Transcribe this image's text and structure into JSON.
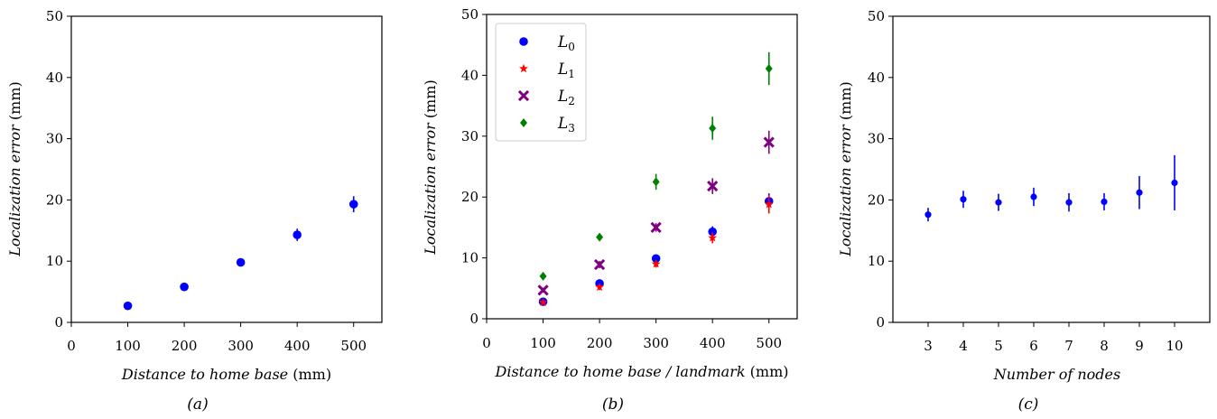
{
  "chart_data": [
    {
      "type": "scatter",
      "caption": "(a)",
      "xlabel_italic": "Distance to home base",
      "xlabel_unit": " (mm)",
      "ylabel_italic": "Localization error",
      "ylabel_unit": " (mm)",
      "xlim": [
        0,
        550
      ],
      "ylim": [
        0,
        50
      ],
      "xticks": [
        0,
        100,
        200,
        300,
        400,
        500
      ],
      "yticks": [
        0,
        10,
        20,
        30,
        40,
        50
      ],
      "series": [
        {
          "marker": "circle",
          "color": "#0000ff",
          "x": [
            100,
            200,
            300,
            400,
            500
          ],
          "y": [
            2.7,
            5.8,
            9.8,
            14.3,
            19.3
          ],
          "err": [
            0.4,
            0.5,
            0.5,
            1.0,
            1.3
          ]
        }
      ]
    },
    {
      "type": "scatter",
      "caption": "(b)",
      "xlabel_italic": "Distance to home base / landmark",
      "xlabel_unit": " (mm)",
      "ylabel_italic": "Localization error",
      "ylabel_unit": " (mm)",
      "xlim": [
        0,
        550
      ],
      "ylim": [
        0,
        50
      ],
      "xticks": [
        0,
        100,
        200,
        300,
        400,
        500
      ],
      "yticks": [
        0,
        10,
        20,
        30,
        40,
        50
      ],
      "legend": "top-left",
      "series": [
        {
          "name": "L",
          "sub": "0",
          "marker": "circle",
          "color": "#0000ff",
          "x": [
            100,
            200,
            300,
            400,
            500
          ],
          "y": [
            2.8,
            5.8,
            9.9,
            14.3,
            19.3
          ],
          "err": [
            0.4,
            0.5,
            0.6,
            0.9,
            1.3
          ]
        },
        {
          "name": "L",
          "sub": "1",
          "marker": "star",
          "color": "#ff0000",
          "x": [
            100,
            200,
            300,
            400,
            500
          ],
          "y": [
            2.7,
            5.2,
            9.0,
            13.3,
            18.8
          ],
          "err": [
            0.3,
            0.5,
            0.6,
            0.9,
            1.5
          ]
        },
        {
          "name": "L",
          "sub": "2",
          "marker": "x",
          "color": "#800080",
          "x": [
            100,
            200,
            300,
            400,
            500
          ],
          "y": [
            4.7,
            8.9,
            15.0,
            21.8,
            29.0
          ],
          "err": [
            0.4,
            0.6,
            0.7,
            1.3,
            1.9
          ]
        },
        {
          "name": "L",
          "sub": "3",
          "marker": "diamond",
          "color": "#008000",
          "x": [
            100,
            200,
            300,
            400,
            500
          ],
          "y": [
            7.0,
            13.4,
            22.5,
            31.3,
            41.1
          ],
          "err": [
            0.4,
            0.5,
            1.3,
            1.9,
            2.7
          ]
        }
      ]
    },
    {
      "type": "scatter",
      "caption": "(c)",
      "xlabel_italic": "Number of nodes",
      "xlabel_unit": "",
      "ylabel_italic": "Localization error",
      "ylabel_unit": " (mm)",
      "xlim": [
        2,
        11
      ],
      "ylim": [
        0,
        50
      ],
      "xticks": [
        3,
        4,
        5,
        6,
        7,
        8,
        9,
        10
      ],
      "yticks": [
        0,
        10,
        20,
        30,
        40,
        50
      ],
      "series": [
        {
          "marker": "circle-small",
          "color": "#0000ff",
          "x": [
            3,
            4,
            5,
            6,
            7,
            8,
            9,
            10
          ],
          "y": [
            17.6,
            20.1,
            19.6,
            20.5,
            19.6,
            19.7,
            21.2,
            22.8
          ],
          "err": [
            1.1,
            1.4,
            1.4,
            1.5,
            1.5,
            1.4,
            2.7,
            4.5
          ]
        }
      ]
    }
  ]
}
